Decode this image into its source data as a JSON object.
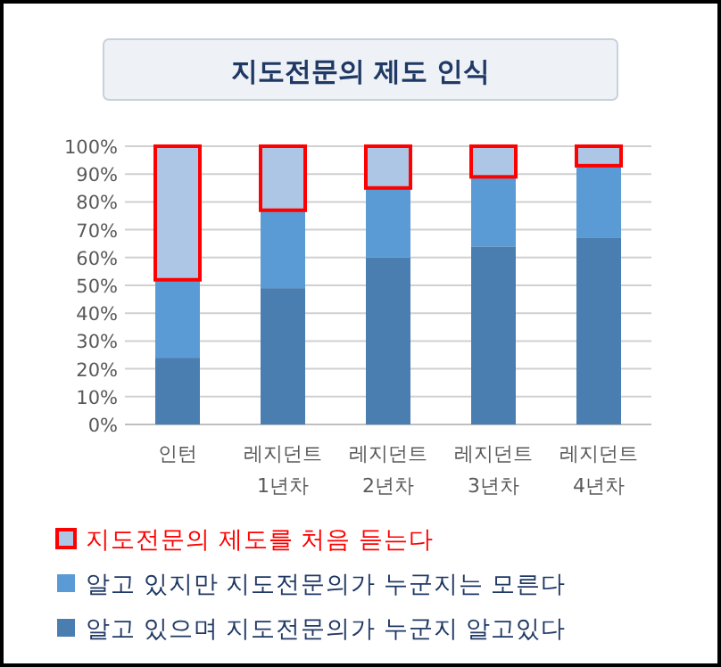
{
  "chart_data": {
    "type": "bar",
    "stacked": true,
    "title": "지도전문의 제도 인식",
    "categories": [
      "인턴",
      "레지던트 1년차",
      "레지던트 2년차",
      "레지던트 3년차",
      "레지던트 4년차"
    ],
    "series": [
      {
        "name": "알고 있으며 지도전문의가 누군지 알고있다",
        "color": "#4a7eb0",
        "values": [
          24,
          49,
          60,
          64,
          67
        ]
      },
      {
        "name": "알고 있지만 지도전문의가 누군지는 모른다",
        "color": "#5b9bd5",
        "values": [
          28,
          28,
          25,
          25,
          26
        ]
      },
      {
        "name": "지도전문의 제도를 처음 듣는다",
        "color": "#adc6e5",
        "values": [
          48,
          23,
          15,
          11,
          7
        ]
      }
    ],
    "ylim": [
      0,
      100
    ],
    "yticks": [
      {
        "value": 0,
        "label": "0%"
      },
      {
        "value": 10,
        "label": "10%"
      },
      {
        "value": 20,
        "label": "20%"
      },
      {
        "value": 30,
        "label": "30%"
      },
      {
        "value": 40,
        "label": "40%"
      },
      {
        "value": 50,
        "label": "50%"
      },
      {
        "value": 60,
        "label": "60%"
      },
      {
        "value": 70,
        "label": "70%"
      },
      {
        "value": 80,
        "label": "80%"
      },
      {
        "value": 90,
        "label": "90%"
      },
      {
        "value": 100,
        "label": "100%"
      }
    ],
    "grid": "y",
    "legend": "bottom"
  }
}
